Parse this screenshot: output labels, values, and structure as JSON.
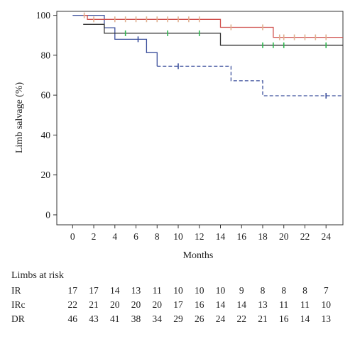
{
  "chart_data": {
    "type": "line",
    "subtype": "kaplan-meier step curves with censor marks",
    "title": "",
    "xlabel": "Months",
    "ylabel": "Limb salvage (%)",
    "xlim": [
      -1.5,
      25.6
    ],
    "ylim": [
      -5,
      102
    ],
    "x_ticks": [
      0,
      2,
      4,
      6,
      8,
      10,
      12,
      14,
      16,
      18,
      20,
      22,
      24
    ],
    "y_ticks": [
      0,
      20,
      40,
      60,
      80,
      100
    ],
    "grid": false,
    "legend": "none",
    "series": [
      {
        "color": "#3b4f9c",
        "steps": [
          [
            0,
            100
          ],
          [
            3,
            93.8
          ],
          [
            4,
            88
          ],
          [
            7,
            81.3
          ],
          [
            8,
            74.5
          ],
          [
            15,
            67.2
          ],
          [
            18,
            59.7
          ]
        ],
        "dashed_from": 8,
        "end_x": 25.6,
        "censor_x": [
          6.2,
          10,
          24
        ]
      },
      {
        "color": "#333333",
        "steps": [
          [
            1,
            95.5
          ],
          [
            3,
            91
          ],
          [
            14,
            85
          ]
        ],
        "end_x": 25.6,
        "censor_x": [
          5,
          9,
          12,
          18,
          19,
          20,
          24
        ]
      },
      {
        "color": "#d0504d",
        "steps": [
          [
            1,
            100
          ],
          [
            1.4,
            98
          ],
          [
            14,
            94
          ],
          [
            19,
            89
          ]
        ],
        "end_x": 25.6,
        "censor_x": [
          1.1,
          2,
          4,
          5,
          6,
          7,
          8,
          9,
          10,
          11,
          12,
          15,
          18,
          19.6,
          20,
          21,
          22,
          23,
          24
        ]
      }
    ],
    "censor_mark_colors": {
      "#3b4f9c": "#3b4f9c",
      "#333333": "#2fb84f",
      "#d0504d": "#e0b090"
    }
  },
  "risk_table": {
    "title": "Limbs at risk",
    "rows": [
      {
        "label": "IR",
        "values": [
          "17",
          "17",
          "14",
          "13",
          "11",
          "10",
          "10",
          "10",
          "9",
          "8",
          "8",
          "8",
          "7"
        ]
      },
      {
        "label": "IRc",
        "values": [
          "22",
          "21",
          "20",
          "20",
          "20",
          "17",
          "16",
          "14",
          "14",
          "13",
          "11",
          "11",
          "10"
        ]
      },
      {
        "label": "DR",
        "values": [
          "46",
          "43",
          "41",
          "38",
          "34",
          "29",
          "26",
          "24",
          "22",
          "21",
          "16",
          "14",
          "13"
        ]
      }
    ]
  }
}
